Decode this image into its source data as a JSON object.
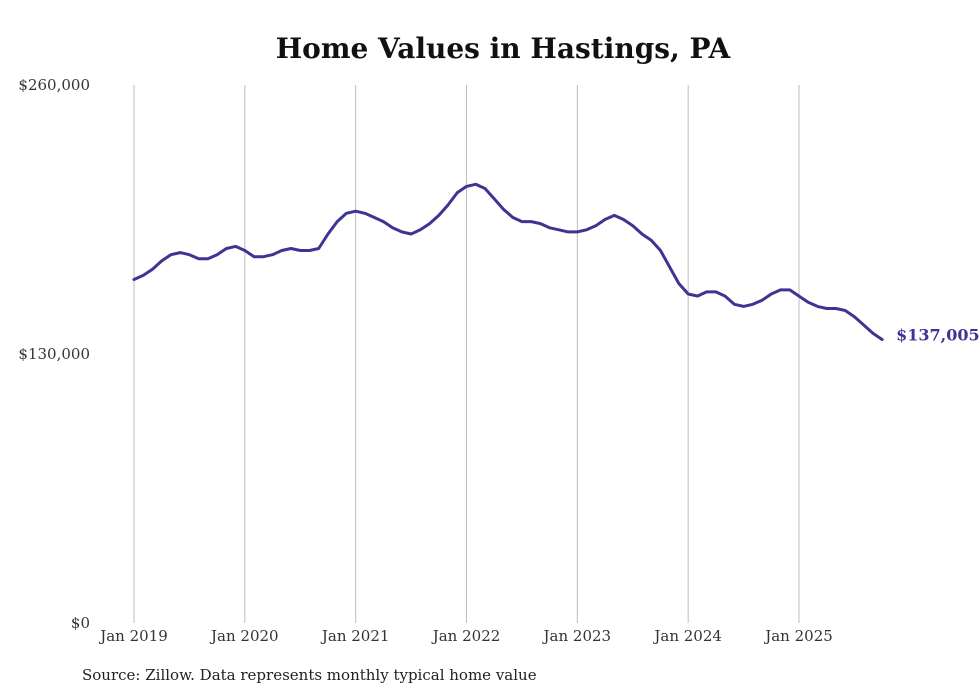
{
  "chart_data": {
    "type": "line",
    "title": "Home Values in Hastings, PA",
    "xlabel": "",
    "ylabel": "",
    "ylim": [
      0,
      260000
    ],
    "y_ticks": [
      {
        "value": 0,
        "label": "$0"
      },
      {
        "value": 130000,
        "label": "$130,000"
      },
      {
        "value": 260000,
        "label": "$260,000"
      }
    ],
    "x_ticks": [
      {
        "month_index": 0,
        "label": "Jan 2019"
      },
      {
        "month_index": 12,
        "label": "Jan 2020"
      },
      {
        "month_index": 24,
        "label": "Jan 2021"
      },
      {
        "month_index": 36,
        "label": "Jan 2022"
      },
      {
        "month_index": 48,
        "label": "Jan 2023"
      },
      {
        "month_index": 60,
        "label": "Jan 2024"
      },
      {
        "month_index": 72,
        "label": "Jan 2025"
      }
    ],
    "grid": "vertical",
    "series": [
      {
        "name": "Typical home value",
        "color": "#3d3593",
        "start": "Jan 2019",
        "frequency": "monthly",
        "values": [
          166000,
          168000,
          171000,
          175000,
          178000,
          179000,
          178000,
          176000,
          176000,
          178000,
          181000,
          182000,
          180000,
          177000,
          177000,
          178000,
          180000,
          181000,
          180000,
          180000,
          181000,
          188000,
          194000,
          198000,
          199000,
          198000,
          196000,
          194000,
          191000,
          189000,
          188000,
          190000,
          193000,
          197000,
          202000,
          208000,
          211000,
          212000,
          210000,
          205000,
          200000,
          196000,
          194000,
          194000,
          193000,
          191000,
          190000,
          189000,
          189000,
          190000,
          192000,
          195000,
          197000,
          195000,
          192000,
          188000,
          185000,
          180000,
          172000,
          164000,
          159000,
          158000,
          160000,
          160000,
          158000,
          154000,
          153000,
          154000,
          156000,
          159000,
          161000,
          161000,
          158000,
          155000,
          153000,
          152000,
          152000,
          151000,
          148000,
          144000,
          140000,
          137005
        ],
        "end_label": "$137,005"
      }
    ]
  },
  "footer": {
    "source": "Source: Zillow. Data represents monthly typical home value"
  }
}
